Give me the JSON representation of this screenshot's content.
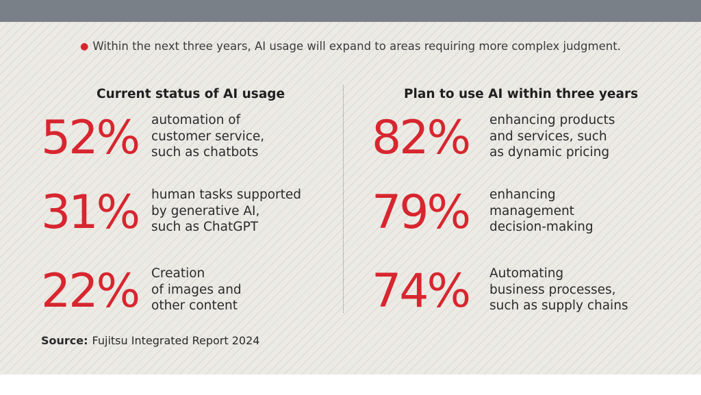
{
  "subtitle": "Within the next three years, AI usage will expand to areas requiring more complex judgment.",
  "colors": {
    "accent": "#d7262f",
    "topbar": "#7a8087",
    "panel": "#eceae5"
  },
  "left": {
    "heading": "Current status of AI usage",
    "stats": [
      {
        "value": "52%",
        "lines": [
          "automation of",
          "customer service,",
          "such as chatbots"
        ]
      },
      {
        "value": "31%",
        "lines": [
          "human tasks supported",
          "by generative AI,",
          "such as ChatGPT"
        ]
      },
      {
        "value": "22%",
        "lines": [
          "Creation",
          "of images and",
          "other content"
        ]
      }
    ]
  },
  "right": {
    "heading": "Plan to use AI within three years",
    "stats": [
      {
        "value": "82%",
        "lines": [
          "enhancing products",
          "and services, such",
          "as dynamic pricing"
        ]
      },
      {
        "value": "79%",
        "lines": [
          "enhancing",
          "management",
          "decision-making"
        ]
      },
      {
        "value": "74%",
        "lines": [
          "Automating",
          "business processes,",
          "such as supply chains"
        ]
      }
    ]
  },
  "source": {
    "label": "Source:",
    "text": "Fujitsu Integrated Report 2024"
  }
}
